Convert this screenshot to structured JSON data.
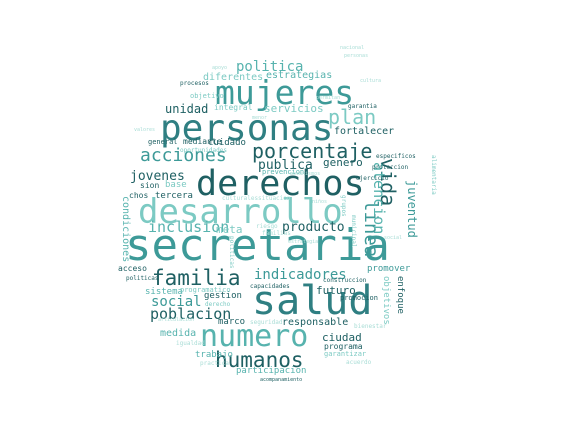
{
  "words": {
    "secretaria": "secretaria",
    "salud": "salud",
    "derechos": "derechos",
    "desarrollo": "desarrollo",
    "personas": "personas",
    "mujeres": "mujeres",
    "numero": "numero",
    "humanos": "humanos",
    "familia": "familia",
    "porcentaje": "porcentaje",
    "acciones": "acciones",
    "inclusion": "inclusion",
    "poblacion": "poblacion",
    "indicadores": "indicadores",
    "plan": "plan",
    "vida": "vida",
    "linea": "linea",
    "atencion": "atencion",
    "politica": "politica",
    "social": "social",
    "jovenes": "jovenes",
    "publica": "publica",
    "producto": "producto",
    "unidad": "unidad",
    "servicios": "servicios",
    "genero": "genero",
    "estrategias": "estrategias",
    "diferentes": "diferentes",
    "fortalecer": "fortalecer",
    "cuidado": "cuidado",
    "ciudad": "ciudad",
    "futuro": "futuro",
    "responsable": "responsable",
    "promover": "promover",
    "juventud": "juventud",
    "meta": "meta",
    "base": "base",
    "tercera": "tercera",
    "sion": "sion",
    "chos": "chos",
    "sistema": "sistema",
    "gestion": "gestion",
    "medida": "medida",
    "marco": "marco",
    "trabajo": "trabajo",
    "participacion": "participacion",
    "acceso": "acceso",
    "condiciones": "condiciones",
    "integral": "integral",
    "mediante": "mediante",
    "objetivo": "objetivo",
    "procesos": "procesos",
    "general": "general",
    "prevencion": "prevencion",
    "enfoque": "enfoque",
    "objetivos": "objetivos",
    "programa": "programa",
    "garantizar": "garantizar",
    "promocion": "promocion",
    "construccion": "construccion",
    "especificos": "especificos",
    "proteccion": "proteccion",
    "ejercicio": "ejercicio",
    "garantia": "garantia",
    "capacidades": "capacidades",
    "seguridad": "seguridad",
    "practica": "practica",
    "igualdad": "igualdad",
    "programatico": "programatico",
    "politicas": "politicas",
    "oportunidades": "oportunidades",
    "acompanamiento": "acompanamiento",
    "derecho": "derecho",
    "municipal": "municipal",
    "alimentaria": "alimentaria",
    "bienestar": "bienestar",
    "acuerdo": "acuerdo",
    "familias": "familias",
    "riesgo": "riesgo",
    "grupos": "grupos",
    "culturales": "culturales",
    "situacion": "situacion",
    "nacional": "nacional",
    "apoyo": "apoyo",
    "cultura": "cultura",
    "personas_small": "personas",
    "menor": "menor",
    "valores": "valores",
    "niños": "niños",
    "estrategia": "estrategia",
    "articulacion": "articulacion",
    "mecanismos": "mecanismos",
    "permitan": "permitan",
    "social_small": "social"
  }
}
